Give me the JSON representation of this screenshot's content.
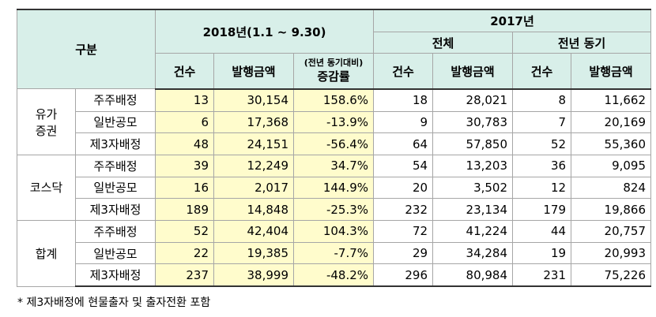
{
  "header": {
    "category": "구분",
    "period_2018": "2018년(1.1 ~ 9.30)",
    "year_2017": "2017년",
    "total": "전체",
    "same_period": "전년 동기",
    "count": "건수",
    "amount": "발행금액",
    "change_note": "(전년 동기대비)",
    "change": "증감률"
  },
  "groups": [
    {
      "name": "유가\n증권",
      "rows": [
        {
          "label": "주주배정",
          "cells": [
            "13",
            "30,154",
            "158.6%",
            "18",
            "28,021",
            "8",
            "11,662"
          ]
        },
        {
          "label": "일반공모",
          "cells": [
            "6",
            "17,368",
            "-13.9%",
            "9",
            "30,783",
            "7",
            "20,169"
          ]
        },
        {
          "label": "제3자배정",
          "cells": [
            "48",
            "24,151",
            "-56.4%",
            "64",
            "57,850",
            "52",
            "55,360"
          ]
        }
      ]
    },
    {
      "name": "코스닥",
      "rows": [
        {
          "label": "주주배정",
          "cells": [
            "39",
            "12,249",
            "34.7%",
            "54",
            "13,203",
            "36",
            "9,095"
          ]
        },
        {
          "label": "일반공모",
          "cells": [
            "16",
            "2,017",
            "144.9%",
            "20",
            "3,502",
            "12",
            "824"
          ]
        },
        {
          "label": "제3자배정",
          "cells": [
            "189",
            "14,848",
            "-25.3%",
            "232",
            "23,134",
            "179",
            "19,866"
          ]
        }
      ]
    },
    {
      "name": "합계",
      "rows": [
        {
          "label": "주주배정",
          "cells": [
            "52",
            "42,404",
            "104.3%",
            "72",
            "41,224",
            "44",
            "20,757"
          ]
        },
        {
          "label": "일반공모",
          "cells": [
            "22",
            "19,385",
            "-7.7%",
            "29",
            "34,284",
            "19",
            "20,993"
          ]
        },
        {
          "label": "제3자배정",
          "cells": [
            "237",
            "38,999",
            "-48.2%",
            "296",
            "80,984",
            "231",
            "75,226"
          ]
        }
      ]
    }
  ],
  "footnote": "* 제3자배정에 현물출자 및 출자전환 포함"
}
